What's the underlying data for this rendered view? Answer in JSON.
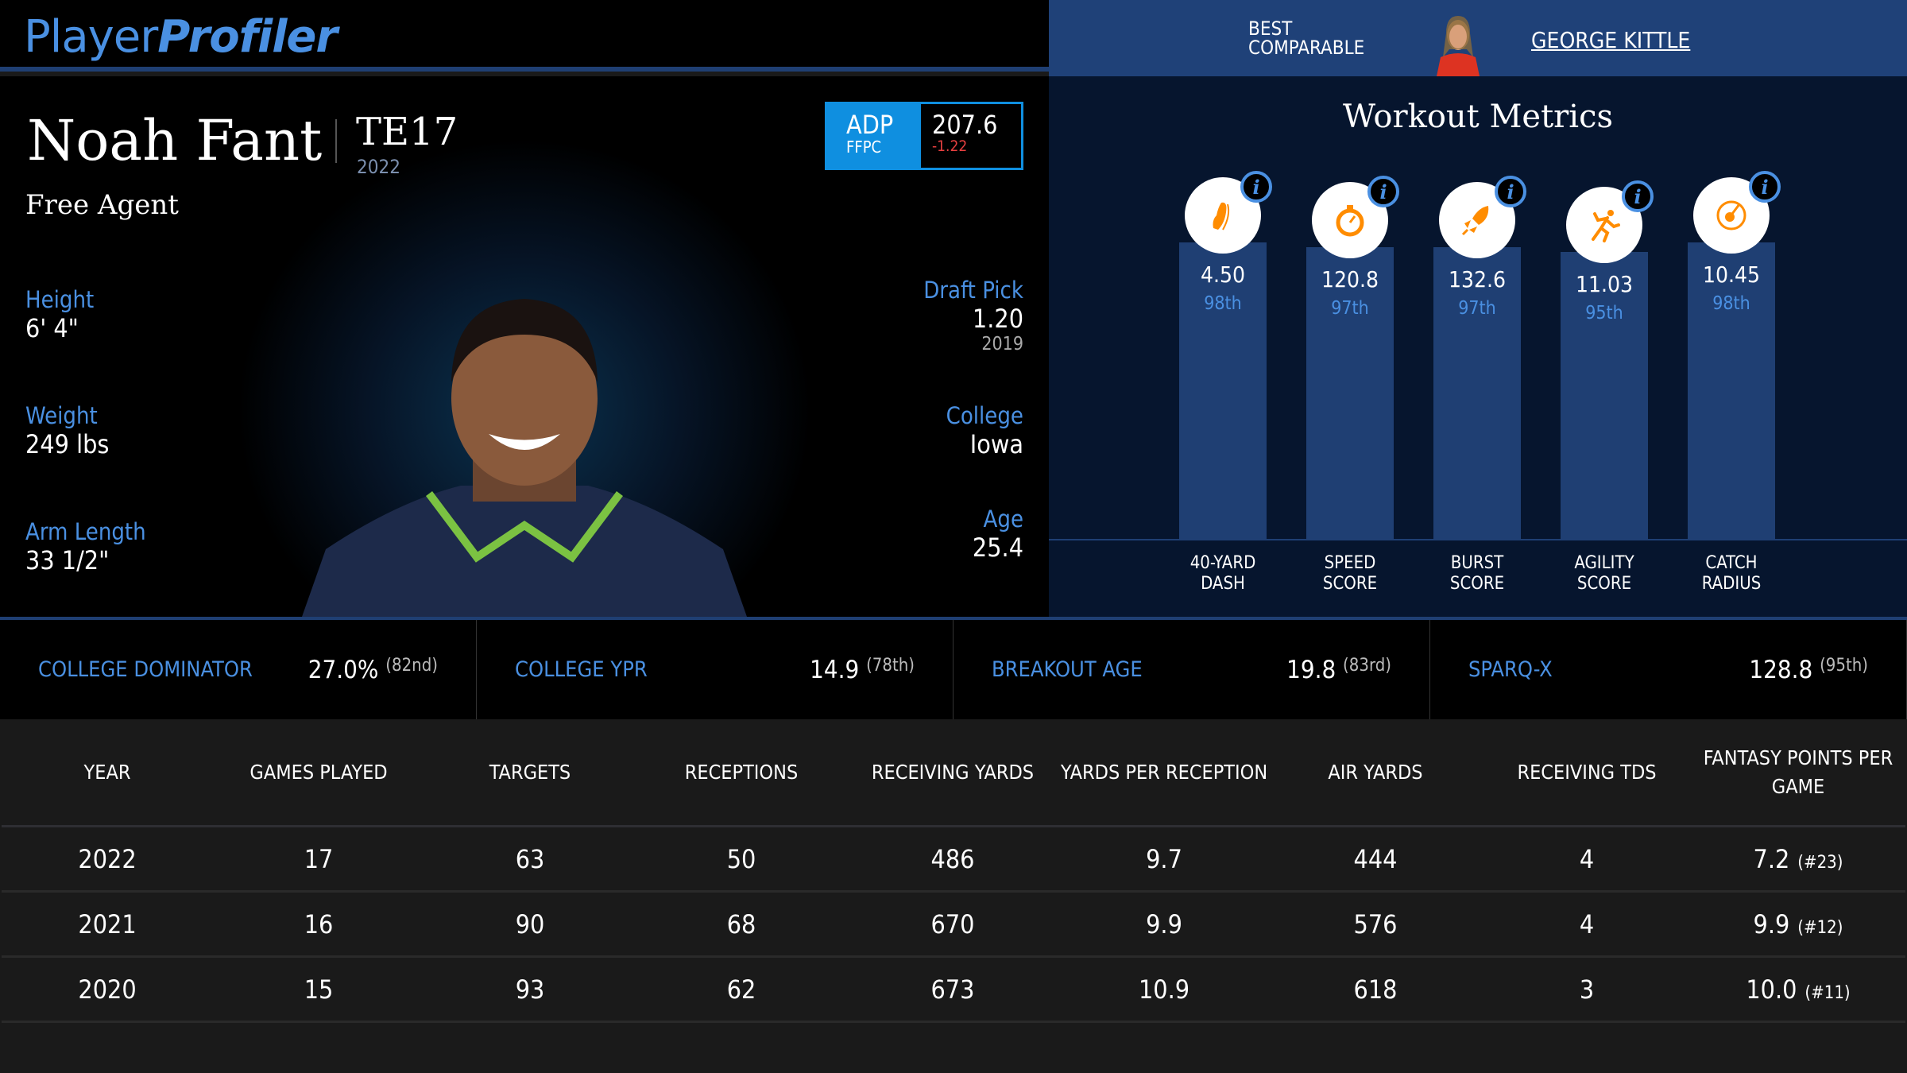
{
  "brand": {
    "part1": "Player",
    "part2": "Profiler"
  },
  "player": {
    "name": "Noah Fant",
    "position_rank": "TE17",
    "season": "2022",
    "team": "Free Agent"
  },
  "adp": {
    "label": "ADP",
    "source": "FFPC",
    "value": "207.6",
    "change": "-1.22"
  },
  "bio_left": [
    {
      "label": "Height",
      "value": "6' 4\""
    },
    {
      "label": "Weight",
      "value": "249 lbs"
    },
    {
      "label": "Arm Length",
      "value": "33 1/2\""
    }
  ],
  "bio_right": {
    "draft": {
      "label": "Draft Pick",
      "value": "1.20",
      "sub": "2019"
    },
    "college": {
      "label": "College",
      "value": "Iowa"
    },
    "age": {
      "label": "Age",
      "value": "25.4"
    }
  },
  "comparable": {
    "label": "BEST COMPARABLE",
    "name": "GEORGE KITTLE"
  },
  "workout": {
    "title": "Workout Metrics",
    "accent": "#ff8c00",
    "metrics": [
      {
        "icon": "shoe-icon",
        "value": "4.50",
        "pct": "98th",
        "label1": "40-YARD",
        "label2": "DASH"
      },
      {
        "icon": "stopwatch-icon",
        "value": "120.8",
        "pct": "97th",
        "label1": "SPEED",
        "label2": "SCORE"
      },
      {
        "icon": "rocket-icon",
        "value": "132.6",
        "pct": "97th",
        "label1": "BURST",
        "label2": "SCORE"
      },
      {
        "icon": "runner-icon",
        "value": "11.03",
        "pct": "95th",
        "label1": "AGILITY",
        "label2": "SCORE"
      },
      {
        "icon": "target-icon",
        "value": "10.45",
        "pct": "98th",
        "label1": "CATCH",
        "label2": "RADIUS"
      }
    ]
  },
  "college_stats": [
    {
      "label": "COLLEGE DOMINATOR",
      "value": "27.0%",
      "rank": "(82nd)"
    },
    {
      "label": "COLLEGE YPR",
      "value": "14.9",
      "rank": "(78th)"
    },
    {
      "label": "BREAKOUT AGE",
      "value": "19.8",
      "rank": "(83rd)"
    },
    {
      "label": "SPARQ-X",
      "value": "128.8",
      "rank": "(95th)"
    }
  ],
  "table": {
    "headers": [
      "YEAR",
      "GAMES PLAYED",
      "TARGETS",
      "RECEPTIONS",
      "RECEIVING YARDS",
      "YARDS PER RECEPTION",
      "AIR YARDS",
      "RECEIVING TDS",
      "FANTASY POINTS PER GAME"
    ],
    "rows": [
      [
        "2022",
        "17",
        "63",
        "50",
        "486",
        "9.7",
        "444",
        "4",
        "7.2",
        "(#23)"
      ],
      [
        "2021",
        "16",
        "90",
        "68",
        "670",
        "9.9",
        "576",
        "4",
        "9.9",
        "(#12)"
      ],
      [
        "2020",
        "15",
        "93",
        "62",
        "673",
        "10.9",
        "618",
        "3",
        "10.0",
        "(#11)"
      ]
    ]
  }
}
